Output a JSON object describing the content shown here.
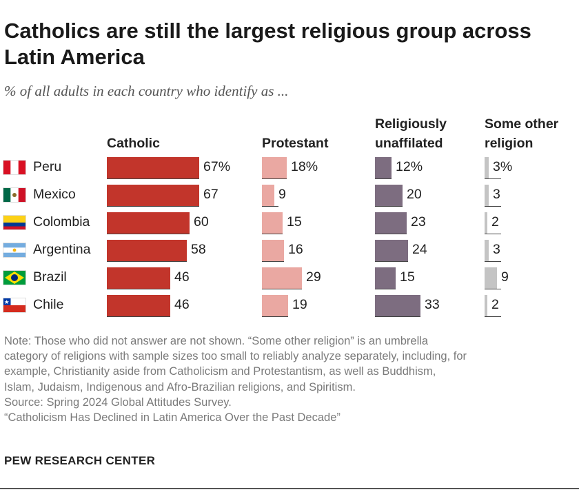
{
  "title": "Catholics are still the largest religious group across Latin America",
  "subtitle": "% of all adults in each country who identify as ...",
  "columns": [
    {
      "key": "catholic",
      "line1": "",
      "line2": "Catholic",
      "color": "#c2352b"
    },
    {
      "key": "protestant",
      "line1": "",
      "line2": "Protestant",
      "color": "#eaa8a2"
    },
    {
      "key": "unaffiliated",
      "line1": "Religiously",
      "line2": "unaffilated",
      "color": "#7d6d80"
    },
    {
      "key": "other",
      "line1": "Some other",
      "line2": "religion",
      "color": "#c4c4c4"
    }
  ],
  "chart_data": {
    "type": "bar",
    "title": "Catholics are still the largest religious group across Latin America",
    "subtitle": "% of all adults in each country who identify as ...",
    "categories": [
      "Peru",
      "Mexico",
      "Colombia",
      "Argentina",
      "Brazil",
      "Chile"
    ],
    "series": [
      {
        "name": "Catholic",
        "values": [
          67,
          67,
          60,
          58,
          46,
          46
        ],
        "labels": [
          "67%",
          "67",
          "60",
          "58",
          "46",
          "46"
        ]
      },
      {
        "name": "Protestant",
        "values": [
          18,
          9,
          15,
          16,
          29,
          19
        ],
        "labels": [
          "18%",
          "9",
          "15",
          "16",
          "29",
          "19"
        ]
      },
      {
        "name": "Religiously unaffilated",
        "values": [
          12,
          20,
          23,
          24,
          15,
          33
        ],
        "labels": [
          "12%",
          "20",
          "23",
          "24",
          "15",
          "33"
        ]
      },
      {
        "name": "Some other religion",
        "values": [
          3,
          3,
          2,
          3,
          9,
          2
        ],
        "labels": [
          "3%",
          "3",
          "2",
          "3",
          "9",
          "2"
        ]
      }
    ],
    "xlabel": "",
    "ylabel": "",
    "unit": "%"
  },
  "flags": [
    "peru",
    "mexico",
    "colombia",
    "argentina",
    "brazil",
    "chile"
  ],
  "note": {
    "lines": [
      "Note: Those who did not answer are not shown. “Some other religion” is an umbrella",
      "category of religions with sample sizes too small to reliably analyze separately, including, for",
      "example, Christianity aside from Catholicism and Protestantism, as well as Buddhism,",
      "Islam, Judaism, Indigenous and Afro-Brazilian religions, and Spiritism.",
      "Source: Spring 2024 Global Attitudes Survey.",
      "“Catholicism Has Declined in Latin America Over the Past Decade”"
    ]
  },
  "brand": "PEW RESEARCH CENTER"
}
